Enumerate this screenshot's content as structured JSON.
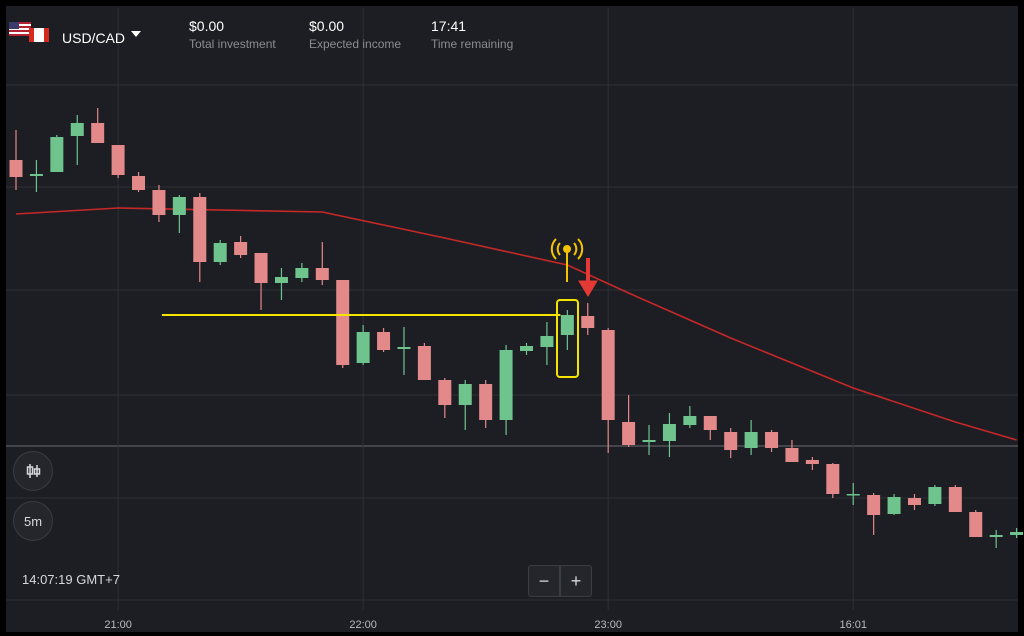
{
  "header": {
    "pair": "USD/CAD",
    "stats": [
      {
        "value": "$0.00",
        "label": "Total investment"
      },
      {
        "value": "$0.00",
        "label": "Expected income"
      },
      {
        "value": "17:41",
        "label": "Time remaining"
      }
    ]
  },
  "controls": {
    "interval": "5m",
    "clock": "14:07:19 GMT+7",
    "zoom_out": "−",
    "zoom_in": "+"
  },
  "chart_data": {
    "type": "candlestick",
    "up_color": "#6fc48e",
    "down_color": "#e4898a",
    "ylim": [
      0,
      636
    ],
    "xticks": [
      {
        "value": 5,
        "label": "21:00"
      },
      {
        "value": 17,
        "label": "22:00"
      },
      {
        "value": 29,
        "label": "23:00"
      },
      {
        "value": 41,
        "label": "16:01"
      }
    ],
    "candles": [
      {
        "open": 476,
        "high": 506,
        "low": 446,
        "close": 459
      },
      {
        "open": 460,
        "high": 476,
        "low": 444,
        "close": 462
      },
      {
        "open": 464,
        "high": 501,
        "low": 464,
        "close": 499
      },
      {
        "open": 500,
        "high": 521,
        "low": 471,
        "close": 513
      },
      {
        "open": 513,
        "high": 528,
        "low": 493,
        "close": 493
      },
      {
        "open": 491,
        "high": 491,
        "low": 458,
        "close": 461
      },
      {
        "open": 460,
        "high": 464,
        "low": 444,
        "close": 446
      },
      {
        "open": 446,
        "high": 451,
        "low": 414,
        "close": 421
      },
      {
        "open": 421,
        "high": 441,
        "low": 403,
        "close": 439
      },
      {
        "open": 439,
        "high": 443,
        "low": 354,
        "close": 374
      },
      {
        "open": 374,
        "high": 396,
        "low": 371,
        "close": 393
      },
      {
        "open": 394,
        "high": 400,
        "low": 378,
        "close": 381
      },
      {
        "open": 383,
        "high": 383,
        "low": 326,
        "close": 353
      },
      {
        "open": 353,
        "high": 368,
        "low": 336,
        "close": 359
      },
      {
        "open": 358,
        "high": 373,
        "low": 354,
        "close": 368
      },
      {
        "open": 368,
        "high": 394,
        "low": 351,
        "close": 356
      },
      {
        "open": 356,
        "high": 356,
        "low": 268,
        "close": 271
      },
      {
        "open": 273,
        "high": 311,
        "low": 271,
        "close": 304
      },
      {
        "open": 304,
        "high": 308,
        "low": 284,
        "close": 286
      },
      {
        "open": 287,
        "high": 309,
        "low": 261,
        "close": 289
      },
      {
        "open": 290,
        "high": 293,
        "low": 256,
        "close": 256
      },
      {
        "open": 256,
        "high": 258,
        "low": 218,
        "close": 231
      },
      {
        "open": 231,
        "high": 256,
        "low": 206,
        "close": 252
      },
      {
        "open": 252,
        "high": 256,
        "low": 208,
        "close": 216
      },
      {
        "open": 216,
        "high": 291,
        "low": 201,
        "close": 286
      },
      {
        "open": 285,
        "high": 293,
        "low": 281,
        "close": 290
      },
      {
        "open": 289,
        "high": 314,
        "low": 271,
        "close": 300
      },
      {
        "open": 301,
        "high": 326,
        "low": 286,
        "close": 321
      },
      {
        "open": 320,
        "high": 333,
        "low": 301,
        "close": 308
      },
      {
        "open": 306,
        "high": 308,
        "low": 183,
        "close": 216
      },
      {
        "open": 214,
        "high": 241,
        "low": 189,
        "close": 191
      },
      {
        "open": 194,
        "high": 211,
        "low": 181,
        "close": 196
      },
      {
        "open": 195,
        "high": 223,
        "low": 179,
        "close": 212
      },
      {
        "open": 211,
        "high": 230,
        "low": 208,
        "close": 220
      },
      {
        "open": 220,
        "high": 220,
        "low": 196,
        "close": 206
      },
      {
        "open": 204,
        "high": 208,
        "low": 178,
        "close": 186
      },
      {
        "open": 188,
        "high": 216,
        "low": 181,
        "close": 204
      },
      {
        "open": 204,
        "high": 206,
        "low": 184,
        "close": 188
      },
      {
        "open": 188,
        "high": 196,
        "low": 174,
        "close": 174
      },
      {
        "open": 176,
        "high": 179,
        "low": 166,
        "close": 172
      },
      {
        "open": 172,
        "high": 173,
        "low": 138,
        "close": 142
      },
      {
        "open": 141,
        "high": 153,
        "low": 131,
        "close": 142
      },
      {
        "open": 141,
        "high": 143,
        "low": 101,
        "close": 121
      },
      {
        "open": 122,
        "high": 142,
        "low": 121,
        "close": 139
      },
      {
        "open": 138,
        "high": 142,
        "low": 126,
        "close": 131
      },
      {
        "open": 132,
        "high": 151,
        "low": 130,
        "close": 149
      },
      {
        "open": 149,
        "high": 151,
        "low": 124,
        "close": 124
      },
      {
        "open": 124,
        "high": 126,
        "low": 99,
        "close": 99
      },
      {
        "open": 99,
        "high": 106,
        "low": 88,
        "close": 101
      },
      {
        "open": 101,
        "high": 108,
        "low": 98,
        "close": 104
      }
    ],
    "moving_average": {
      "color": "#c62828",
      "x": [
        0,
        5,
        15,
        21,
        27,
        30,
        35,
        41,
        46,
        49
      ],
      "values": [
        422,
        428,
        424,
        398,
        371,
        343,
        298,
        248,
        214,
        196
      ]
    },
    "level": {
      "color": "#f5e400",
      "from": 7,
      "to": 27,
      "value": 321
    }
  }
}
